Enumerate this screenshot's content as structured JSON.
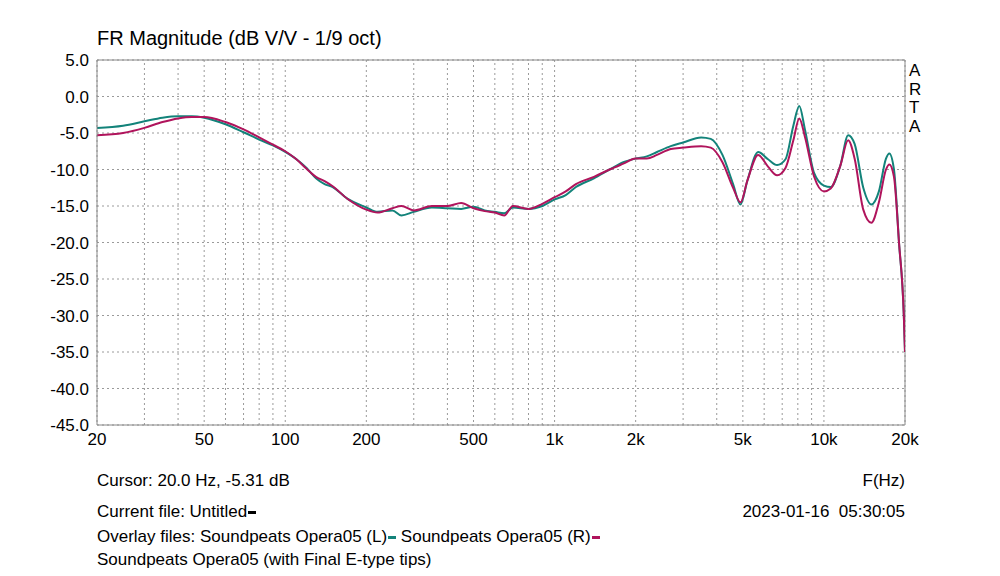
{
  "chart_data": {
    "type": "line",
    "title": "FR Magnitude (dB V/V - 1/9 oct)",
    "log": "x",
    "grid": true,
    "legend": "bottom",
    "xlim": [
      20,
      20000
    ],
    "ylim": [
      -45,
      5
    ],
    "xticks": [
      20,
      50,
      100,
      200,
      500,
      {
        "value": 1000,
        "label": "1k"
      },
      {
        "value": 2000,
        "label": "2k"
      },
      {
        "value": 5000,
        "label": "5k"
      },
      {
        "value": 10000,
        "label": "10k"
      },
      {
        "value": 20000,
        "label": "20k"
      }
    ],
    "yticks": [
      {
        "value": -45,
        "label": "-45.0"
      },
      {
        "value": -40,
        "label": "-40.0"
      },
      {
        "value": -35,
        "label": "-35.0"
      },
      {
        "value": -30,
        "label": "-30.0"
      },
      {
        "value": -25,
        "label": "-25.0"
      },
      {
        "value": -20,
        "label": "-20.0"
      },
      {
        "value": -15,
        "label": "-15.0"
      },
      {
        "value": -10,
        "label": "-10.0"
      },
      {
        "value": -5,
        "label": "-5.0"
      },
      {
        "value": 0,
        "label": "0.0"
      },
      {
        "value": 5,
        "label": "5.0"
      }
    ],
    "annotations": {
      "side_label": "ARTA",
      "cursor": "Cursor: 20.0 Hz, -5.31 dB",
      "x_label": "F(Hz)",
      "current_file": "Current file: Untitled",
      "timestamp": "2023-01-16  05:30:05",
      "overlay_prefix": "Overlay files:",
      "overlay_extra": "Soundpeats Opera05 (with Final E-type tips)"
    },
    "x": [
      20,
      25,
      30,
      35,
      40,
      45,
      50,
      60,
      70,
      80,
      90,
      100,
      110,
      120,
      130,
      140,
      150,
      170,
      200,
      220,
      250,
      270,
      300,
      350,
      400,
      450,
      500,
      550,
      600,
      650,
      700,
      800,
      900,
      1000,
      1100,
      1200,
      1400,
      1600,
      1800,
      2000,
      2200,
      2400,
      2700,
      3000,
      3500,
      3800,
      4200,
      4600,
      4900,
      5200,
      5700,
      6200,
      6700,
      7200,
      7700,
      8100,
      8500,
      9200,
      10000,
      10600,
      11500,
      12300,
      13000,
      14000,
      15000,
      16000,
      17000,
      17500,
      18200,
      19000,
      19800,
      20000
    ],
    "series": [
      {
        "name": "Soundpeats Opera05 (L)",
        "color": "#13837a",
        "line_style": "solid",
        "values": [
          -4.3,
          -4.0,
          -3.4,
          -2.9,
          -2.7,
          -2.7,
          -2.9,
          -3.8,
          -4.9,
          -5.9,
          -6.7,
          -7.6,
          -8.6,
          -9.8,
          -11.2,
          -12.0,
          -12.4,
          -14.0,
          -15.2,
          -15.8,
          -15.6,
          -16.3,
          -15.8,
          -15.2,
          -15.3,
          -15.4,
          -15.1,
          -15.6,
          -15.8,
          -16.0,
          -15.2,
          -15.4,
          -15.0,
          -14.1,
          -13.5,
          -12.4,
          -11.2,
          -10.0,
          -9.0,
          -8.5,
          -8.2,
          -7.6,
          -6.8,
          -6.3,
          -5.6,
          -5.8,
          -8.0,
          -12.0,
          -14.8,
          -11.5,
          -7.6,
          -8.6,
          -9.4,
          -8.6,
          -4.0,
          -1.3,
          -4.5,
          -10.5,
          -12.2,
          -12.4,
          -9.5,
          -5.3,
          -6.5,
          -12.5,
          -14.8,
          -13.0,
          -8.5,
          -7.8,
          -10.0,
          -20.0,
          -30.0,
          -35.0
        ]
      },
      {
        "name": "Soundpeats Opera05 (R)",
        "color": "#b0145c",
        "line_style": "solid",
        "values": [
          -5.3,
          -5.0,
          -4.3,
          -3.5,
          -3.0,
          -2.8,
          -2.8,
          -3.5,
          -4.5,
          -5.6,
          -6.6,
          -7.5,
          -8.6,
          -9.9,
          -11.0,
          -11.6,
          -12.3,
          -14.0,
          -15.5,
          -15.9,
          -15.3,
          -15.0,
          -15.6,
          -15.0,
          -15.0,
          -14.6,
          -15.3,
          -15.7,
          -15.9,
          -16.3,
          -15.0,
          -15.4,
          -14.7,
          -13.8,
          -13.0,
          -12.0,
          -11.0,
          -10.0,
          -9.2,
          -8.5,
          -8.5,
          -8.0,
          -7.2,
          -7.0,
          -6.8,
          -7.0,
          -9.0,
          -12.5,
          -14.5,
          -11.5,
          -8.0,
          -9.6,
          -10.8,
          -9.8,
          -6.0,
          -3.0,
          -5.5,
          -11.0,
          -13.0,
          -12.6,
          -9.5,
          -6.0,
          -8.5,
          -15.5,
          -17.3,
          -14.5,
          -10.0,
          -9.3,
          -11.0,
          -20.0,
          -30.0,
          -35.0
        ]
      }
    ]
  }
}
